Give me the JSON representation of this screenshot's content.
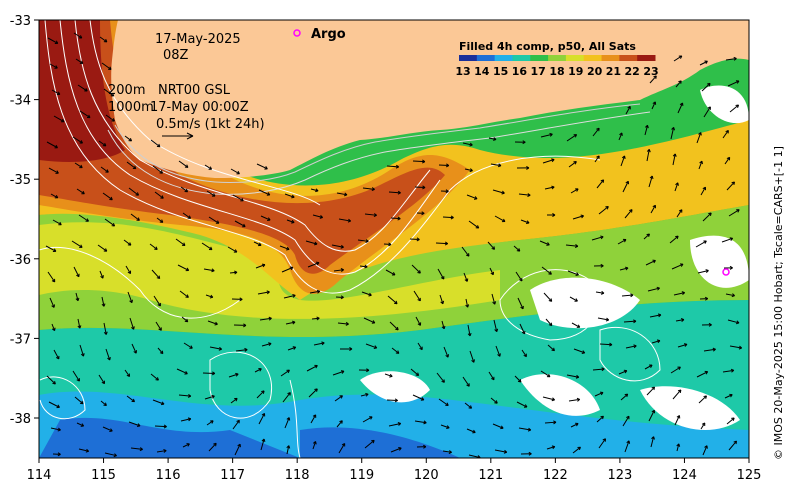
{
  "map": {
    "date_label": "17-May-2025",
    "time_label": "08Z",
    "contour_info_line1_left": "200m",
    "contour_info_line1_right": "NRT00 GSL",
    "contour_info_line2_left": "1000m",
    "contour_info_line2_right": "17-May 00:00Z",
    "vector_scale_label": "0.5m/s (1kt 24h)",
    "argo_label": "Argo",
    "credit": "© IMOS 20-May-2025 15:00 Hobart; Tscale=CARS+[-1 1]",
    "land_color": "#fbc896",
    "argo_marker_color": "#ff00ff"
  },
  "colorbar": {
    "title": "Filled 4h comp, p50, All Sats",
    "ticks": [
      "13",
      "14",
      "15",
      "16",
      "17",
      "18",
      "19",
      "20",
      "21",
      "22",
      "23"
    ],
    "colors": [
      "#1a2f9a",
      "#1e6fd6",
      "#22b0e8",
      "#1ec9a8",
      "#2fbf4a",
      "#8fd23a",
      "#d8df2a",
      "#f2c21e",
      "#e8901a",
      "#c8501a",
      "#9a1a12"
    ]
  },
  "axes": {
    "x_ticks": [
      "114",
      "115",
      "116",
      "117",
      "118",
      "119",
      "120",
      "121",
      "122",
      "123",
      "124",
      "125"
    ],
    "y_ticks": [
      "-33",
      "-34",
      "-35",
      "-36",
      "-37",
      "-38"
    ]
  }
}
